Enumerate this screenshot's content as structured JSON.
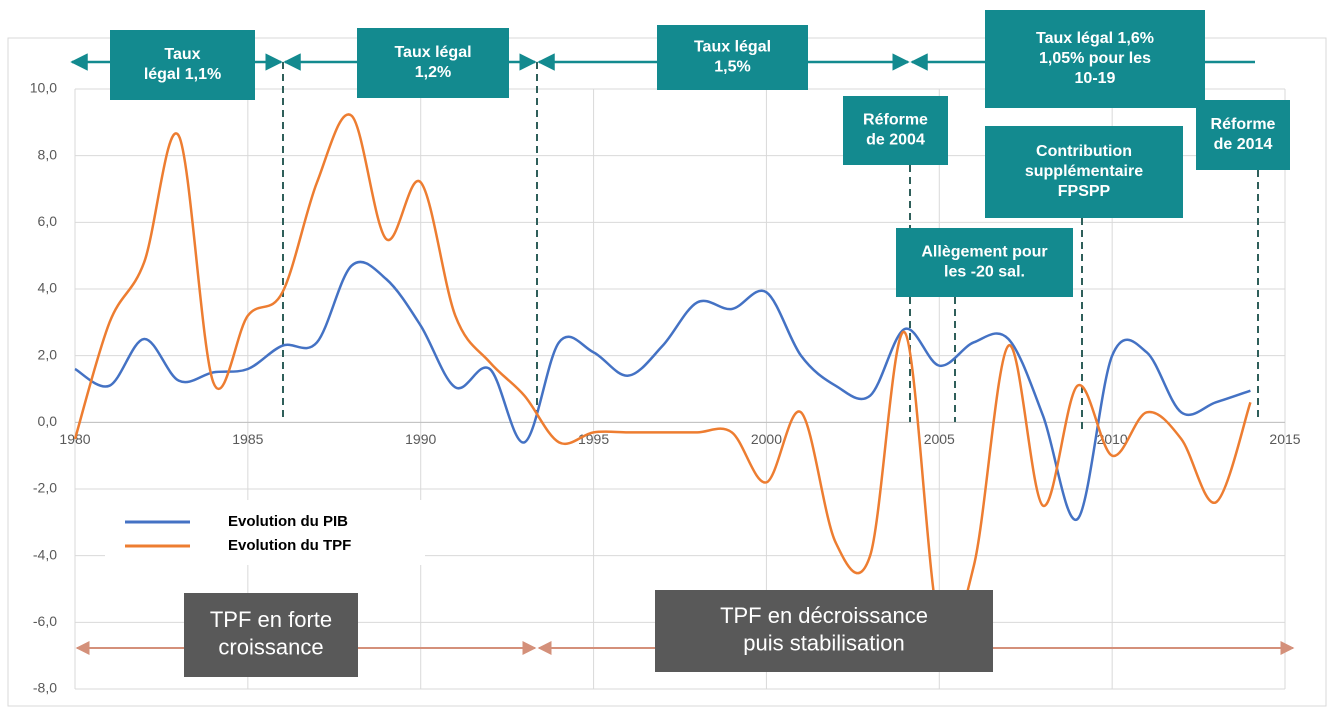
{
  "chart_data": {
    "type": "line",
    "x": [
      1980,
      1981,
      1982,
      1983,
      1984,
      1985,
      1986,
      1987,
      1988,
      1989,
      1990,
      1991,
      1992,
      1993,
      1994,
      1995,
      1996,
      1997,
      1998,
      1999,
      2000,
      2001,
      2002,
      2003,
      2004,
      2005,
      2006,
      2007,
      2008,
      2009,
      2010,
      2011,
      2012,
      2013,
      2014
    ],
    "series": [
      {
        "name": "Evolution du PIB",
        "color": "#4472c4",
        "values": [
          1.6,
          1.1,
          2.5,
          1.25,
          1.5,
          1.6,
          2.3,
          2.4,
          4.7,
          4.3,
          2.9,
          1.05,
          1.6,
          -0.6,
          2.4,
          2.1,
          1.4,
          2.3,
          3.6,
          3.4,
          3.9,
          2.0,
          1.1,
          0.8,
          2.8,
          1.7,
          2.4,
          2.5,
          0.2,
          -2.9,
          2.0,
          2.1,
          0.3,
          0.6,
          0.95
        ]
      },
      {
        "name": "Evolution du TPF",
        "color": "#ed7d31",
        "values": [
          -0.5,
          3.0,
          4.8,
          8.6,
          1.2,
          3.2,
          3.9,
          7.2,
          9.2,
          5.5,
          7.2,
          3.2,
          1.8,
          0.8,
          -0.6,
          -0.3,
          -0.3,
          -0.3,
          -0.3,
          -0.3,
          -1.8,
          0.3,
          -3.6,
          -4.0,
          2.7,
          -6.1,
          -4.3,
          2.3,
          -2.5,
          1.1,
          -1.0,
          0.3,
          -0.5,
          -2.4,
          0.6
        ]
      }
    ],
    "xlim": [
      1980,
      2015
    ],
    "xticks": [
      1980,
      1985,
      1990,
      1995,
      2000,
      2005,
      2010,
      2015
    ],
    "ylim": [
      -8,
      10
    ],
    "yticks": [
      {
        "value": -8,
        "label": "-8,0"
      },
      {
        "value": -6,
        "label": "-6,0"
      },
      {
        "value": -4,
        "label": "-4,0"
      },
      {
        "value": -2,
        "label": "-2,0"
      },
      {
        "value": 0,
        "label": "0,0"
      },
      {
        "value": 2,
        "label": "2,0"
      },
      {
        "value": 4,
        "label": "4,0"
      },
      {
        "value": 6,
        "label": "6,0"
      },
      {
        "value": 8,
        "label": "8,0"
      },
      {
        "value": 10,
        "label": "10,0"
      }
    ],
    "grid": true,
    "annotations": [
      {
        "lines": [
          "Taux",
          "légal 1,1%"
        ]
      },
      {
        "lines": [
          "Taux légal",
          "1,2%"
        ]
      },
      {
        "lines": [
          "Taux légal",
          "1,5%"
        ]
      },
      {
        "lines": [
          "Taux légal 1,6%",
          "1,05% pour les",
          "10-19"
        ]
      },
      {
        "lines": [
          "Réforme",
          "de 2004"
        ]
      },
      {
        "lines": [
          "Contribution",
          "supplémentaire",
          "FPSPP"
        ]
      },
      {
        "lines": [
          "Allègement pour",
          "les -20 sal."
        ]
      },
      {
        "lines": [
          "Réforme",
          "de 2014"
        ]
      }
    ],
    "phases": [
      {
        "lines": [
          "TPF en forte",
          "croissance"
        ]
      },
      {
        "lines": [
          "TPF en décroissance",
          "puis stabilisation"
        ]
      }
    ]
  }
}
